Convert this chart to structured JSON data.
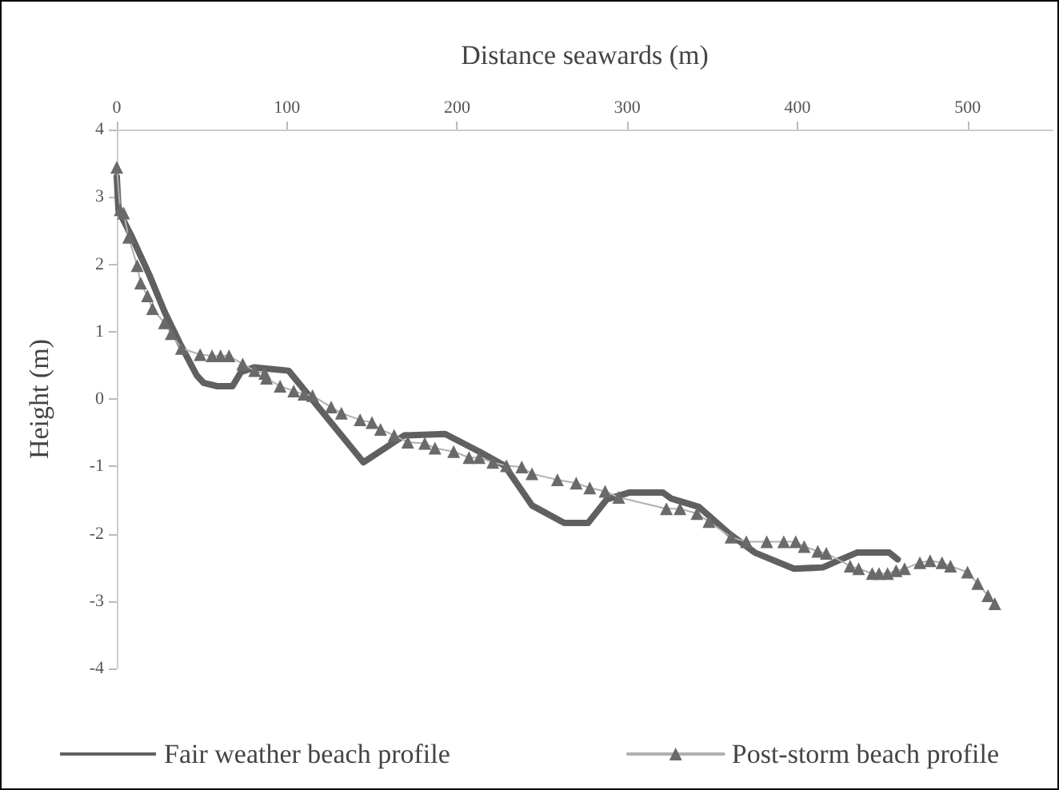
{
  "chart_data": {
    "type": "line",
    "xlabel": "Distance seawards (m)",
    "ylabel": "Height (m)",
    "xlim": [
      0,
      550
    ],
    "xticks": [
      0,
      100,
      200,
      300,
      400,
      500
    ],
    "ylim": [
      -4,
      4
    ],
    "yticks": [
      -4,
      -3,
      -2,
      -1,
      0,
      1,
      2,
      3,
      4
    ],
    "grid": false,
    "legend": "bottom",
    "line_style": "solid",
    "series": [
      {
        "name": "Fair weather beach profile",
        "color": "#606060",
        "marker": "none",
        "x": [
          0,
          1,
          5,
          9,
          19,
          28,
          37,
          47,
          51,
          59,
          68,
          73,
          81,
          101,
          145,
          169,
          193,
          213,
          228,
          244,
          263,
          277,
          288,
          301,
          321,
          326,
          342,
          360,
          375,
          398,
          415,
          424,
          435,
          454,
          459
        ],
        "values": [
          3.3,
          2.8,
          2.6,
          2.4,
          1.85,
          1.3,
          0.83,
          0.35,
          0.24,
          0.19,
          0.19,
          0.4,
          0.47,
          0.42,
          -0.94,
          -0.54,
          -0.52,
          -0.78,
          -0.99,
          -1.58,
          -1.84,
          -1.84,
          -1.49,
          -1.39,
          -1.39,
          -1.48,
          -1.6,
          -2.0,
          -2.28,
          -2.52,
          -2.5,
          -2.4,
          -2.28,
          -2.28,
          -2.38
        ]
      },
      {
        "name": "Post-storm beach profile",
        "color": "#6a6a6a",
        "marker": "triangle",
        "x": [
          0,
          2,
          4,
          7,
          12,
          14,
          18,
          21,
          28,
          32,
          38,
          49,
          56,
          61,
          66,
          74,
          81,
          87,
          88,
          96,
          104,
          110,
          115,
          126,
          132,
          143,
          150,
          155,
          163,
          171,
          181,
          187,
          198,
          207,
          213,
          221,
          229,
          238,
          244,
          259,
          270,
          278,
          287,
          295,
          323,
          331,
          341,
          348,
          361,
          370,
          382,
          392,
          399,
          404,
          412,
          417,
          431,
          436,
          444,
          448,
          453,
          458,
          463,
          472,
          478,
          485,
          490,
          500,
          506,
          512,
          516
        ],
        "values": [
          3.44,
          2.81,
          2.76,
          2.4,
          1.98,
          1.72,
          1.53,
          1.34,
          1.13,
          0.97,
          0.75,
          0.66,
          0.64,
          0.64,
          0.64,
          0.52,
          0.42,
          0.38,
          0.31,
          0.19,
          0.12,
          0.07,
          0.05,
          -0.12,
          -0.21,
          -0.31,
          -0.35,
          -0.45,
          -0.54,
          -0.64,
          -0.66,
          -0.73,
          -0.78,
          -0.87,
          -0.87,
          -0.94,
          -0.99,
          -1.01,
          -1.11,
          -1.2,
          -1.25,
          -1.32,
          -1.37,
          -1.46,
          -1.63,
          -1.63,
          -1.7,
          -1.82,
          -2.05,
          -2.12,
          -2.12,
          -2.12,
          -2.12,
          -2.19,
          -2.26,
          -2.29,
          -2.48,
          -2.52,
          -2.59,
          -2.59,
          -2.59,
          -2.55,
          -2.52,
          -2.43,
          -2.4,
          -2.43,
          -2.48,
          -2.57,
          -2.74,
          -2.92,
          -3.04
        ]
      }
    ]
  }
}
